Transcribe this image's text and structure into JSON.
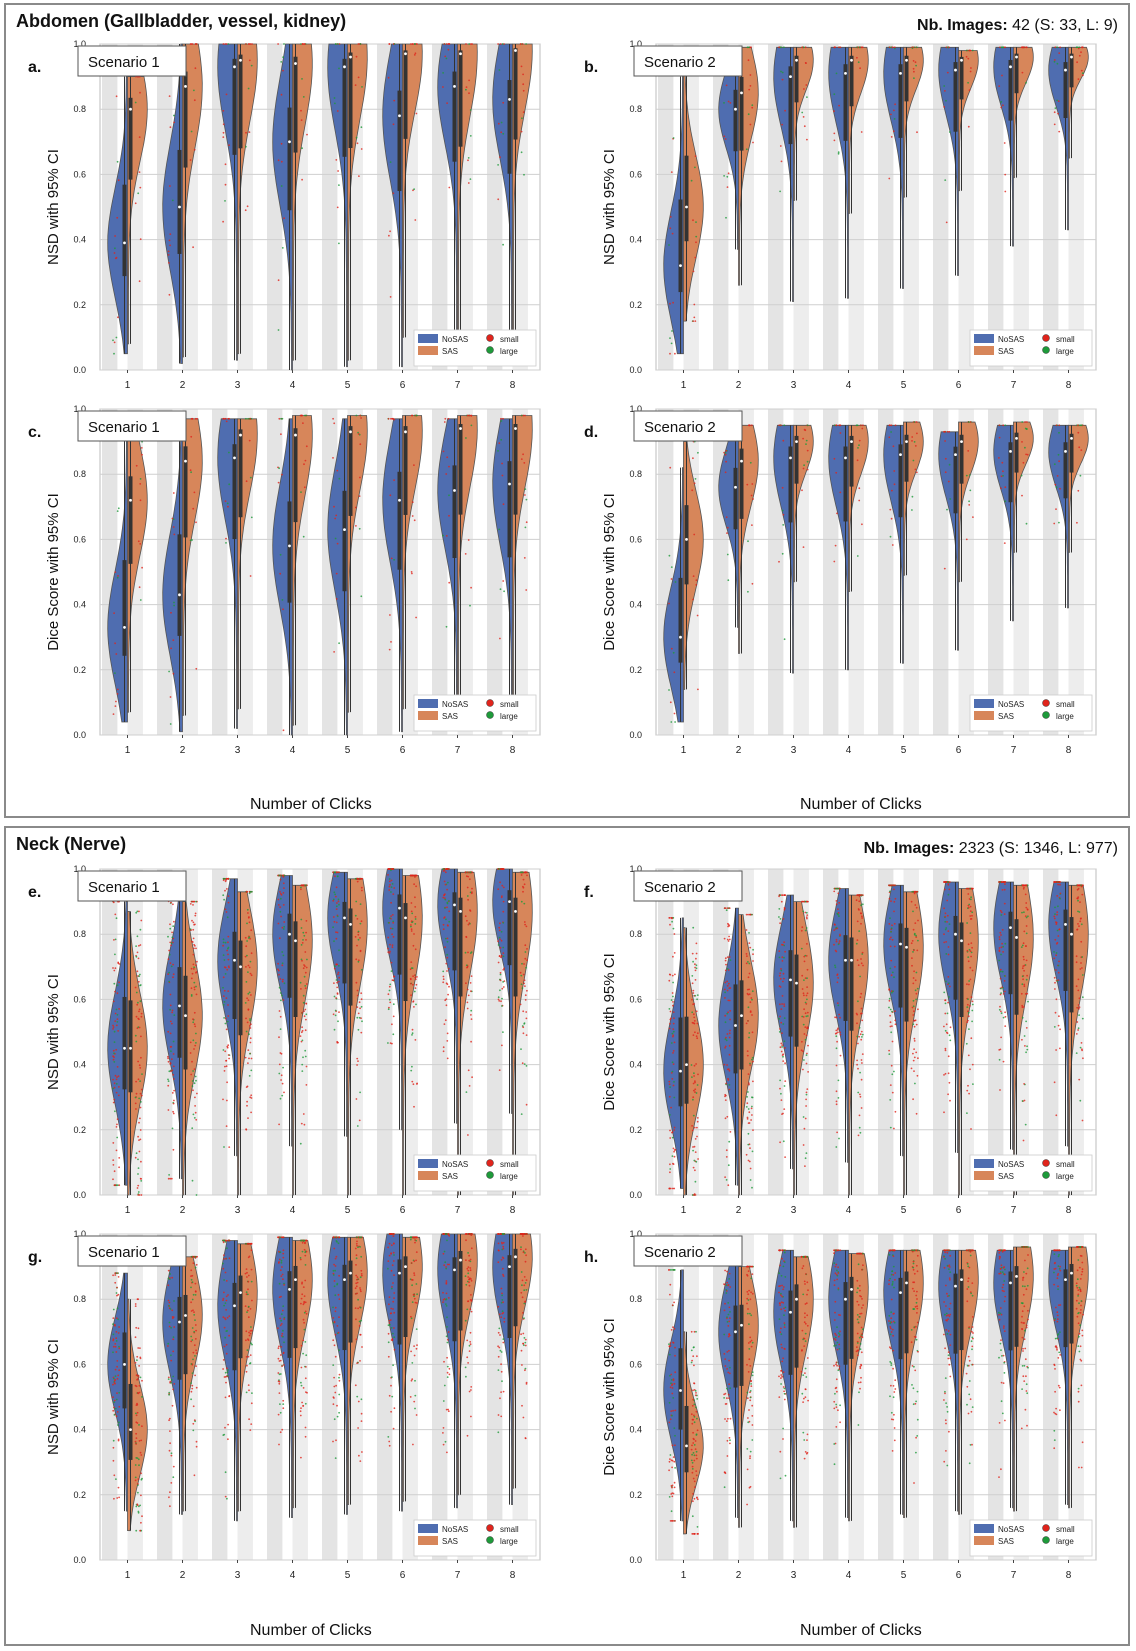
{
  "sections": [
    {
      "title": "Abdomen (Gallbladder, vessel, kidney)",
      "count_label": "Nb. Images:",
      "count_value": "42 (S: 33, L: 9)",
      "xlabel": "Number of Clicks"
    },
    {
      "title": "Neck (Nerve)",
      "count_label": "Nb. Images:",
      "count_value": "2323 (S: 1346, L: 977)",
      "xlabel": "Number of Clicks"
    }
  ],
  "legend": {
    "series": [
      {
        "name": "NoSAS",
        "color": "#4f6db0"
      },
      {
        "name": "SAS",
        "color": "#d7865a"
      }
    ],
    "sizes": [
      {
        "name": "small",
        "color": "#e0241c"
      },
      {
        "name": "large",
        "color": "#1e9a3a"
      }
    ]
  },
  "chart_data": [
    {
      "id": "a",
      "panel_label": "a.",
      "scenario": "Scenario 1",
      "type": "violin",
      "ylabel": "NSD with 95% CI",
      "xlabel": "",
      "ylim": [
        0,
        1
      ],
      "yticks": [
        "0.0",
        "0.2",
        "0.4",
        "0.6",
        "0.8",
        "1.0"
      ],
      "categories": [
        "1",
        "2",
        "3",
        "4",
        "5",
        "6",
        "7",
        "8"
      ],
      "series": [
        {
          "name": "NoSAS",
          "min": [
            0.05,
            0.02,
            0.03,
            0.0,
            0.01,
            0.01,
            0.1,
            0.07
          ],
          "max": [
            0.9,
            1.0,
            1.0,
            1.0,
            1.0,
            1.0,
            1.0,
            1.0
          ],
          "median": [
            0.39,
            0.5,
            0.93,
            0.7,
            0.93,
            0.78,
            0.87,
            0.83
          ]
        },
        {
          "name": "SAS",
          "min": [
            0.08,
            0.04,
            0.05,
            0.03,
            0.03,
            0.1,
            0.02,
            0.07
          ],
          "max": [
            0.9,
            1.0,
            1.0,
            1.0,
            1.0,
            1.0,
            1.0,
            1.0
          ],
          "median": [
            0.8,
            0.87,
            0.95,
            0.94,
            0.96,
            0.97,
            0.97,
            0.98
          ]
        }
      ],
      "dots": 14
    },
    {
      "id": "b",
      "panel_label": "b.",
      "scenario": "Scenario 2",
      "type": "violin",
      "ylabel": "NSD with 95% CI",
      "xlabel": "",
      "ylim": [
        0,
        1
      ],
      "yticks": [
        "0.0",
        "0.2",
        "0.4",
        "0.6",
        "0.8",
        "1.0"
      ],
      "categories": [
        "1",
        "2",
        "3",
        "4",
        "5",
        "6",
        "7",
        "8"
      ],
      "series": [
        {
          "name": "NoSAS",
          "min": [
            0.05,
            0.37,
            0.21,
            0.22,
            0.25,
            0.29,
            0.38,
            0.43
          ],
          "max": [
            0.9,
            0.97,
            0.99,
            0.99,
            0.99,
            0.99,
            0.99,
            0.99
          ],
          "median": [
            0.32,
            0.8,
            0.9,
            0.91,
            0.91,
            0.92,
            0.93,
            0.92
          ]
        },
        {
          "name": "SAS",
          "min": [
            0.15,
            0.26,
            0.52,
            0.48,
            0.53,
            0.55,
            0.59,
            0.65
          ],
          "max": [
            0.95,
            0.99,
            0.99,
            0.99,
            0.99,
            0.98,
            0.99,
            0.99
          ],
          "median": [
            0.5,
            0.85,
            0.95,
            0.95,
            0.95,
            0.95,
            0.96,
            0.96
          ]
        }
      ],
      "dots": 14
    },
    {
      "id": "c",
      "panel_label": "c.",
      "scenario": "Scenario 1",
      "type": "violin",
      "ylabel": "Dice Score with 95% CI",
      "xlabel": "Number of Clicks",
      "ylim": [
        0,
        1
      ],
      "yticks": [
        "0.0",
        "0.2",
        "0.4",
        "0.6",
        "0.8",
        "1.0"
      ],
      "categories": [
        "1",
        "2",
        "3",
        "4",
        "5",
        "6",
        "7",
        "8"
      ],
      "series": [
        {
          "name": "NoSAS",
          "min": [
            0.04,
            0.01,
            0.02,
            0.0,
            0.0,
            0.01,
            0.06,
            0.02
          ],
          "max": [
            0.92,
            0.96,
            0.97,
            0.97,
            0.97,
            0.97,
            0.97,
            0.97
          ],
          "median": [
            0.33,
            0.43,
            0.85,
            0.58,
            0.63,
            0.72,
            0.75,
            0.77
          ]
        },
        {
          "name": "SAS",
          "min": [
            0.07,
            0.06,
            0.08,
            0.03,
            0.07,
            0.08,
            0.06,
            0.06
          ],
          "max": [
            0.93,
            0.97,
            0.97,
            0.98,
            0.98,
            0.98,
            0.98,
            0.98
          ],
          "median": [
            0.72,
            0.84,
            0.92,
            0.92,
            0.93,
            0.93,
            0.94,
            0.94
          ]
        }
      ],
      "dots": 14
    },
    {
      "id": "d",
      "panel_label": "d.",
      "scenario": "Scenario 2",
      "type": "violin",
      "ylabel": "Dice Score with 95% CI",
      "xlabel": "Number of Clicks",
      "ylim": [
        0,
        1
      ],
      "yticks": [
        "0.0",
        "0.2",
        "0.4",
        "0.6",
        "0.8",
        "1.0"
      ],
      "categories": [
        "1",
        "2",
        "3",
        "4",
        "5",
        "6",
        "7",
        "8"
      ],
      "series": [
        {
          "name": "NoSAS",
          "min": [
            0.04,
            0.33,
            0.19,
            0.2,
            0.22,
            0.26,
            0.35,
            0.39
          ],
          "max": [
            0.82,
            0.93,
            0.95,
            0.95,
            0.95,
            0.93,
            0.95,
            0.95
          ],
          "median": [
            0.3,
            0.76,
            0.85,
            0.85,
            0.86,
            0.86,
            0.87,
            0.87
          ]
        },
        {
          "name": "SAS",
          "min": [
            0.14,
            0.25,
            0.47,
            0.44,
            0.49,
            0.47,
            0.56,
            0.56
          ],
          "max": [
            0.9,
            0.95,
            0.95,
            0.95,
            0.96,
            0.96,
            0.96,
            0.95
          ],
          "median": [
            0.6,
            0.84,
            0.9,
            0.9,
            0.9,
            0.9,
            0.91,
            0.91
          ]
        }
      ],
      "dots": 14
    },
    {
      "id": "e",
      "panel_label": "e.",
      "scenario": "Scenario 1",
      "type": "violin",
      "ylabel": "NSD with 95% CI",
      "xlabel": "",
      "ylim": [
        0,
        1
      ],
      "yticks": [
        "0.0",
        "0.2",
        "0.4",
        "0.6",
        "0.8",
        "1.0"
      ],
      "categories": [
        "1",
        "2",
        "3",
        "4",
        "5",
        "6",
        "7",
        "8"
      ],
      "series": [
        {
          "name": "NoSAS",
          "min": [
            0.03,
            0.05,
            0.12,
            0.15,
            0.18,
            0.2,
            0.22,
            0.25
          ],
          "max": [
            0.9,
            0.92,
            0.97,
            0.98,
            0.99,
            1.0,
            1.0,
            1.0
          ],
          "median": [
            0.45,
            0.58,
            0.72,
            0.8,
            0.85,
            0.88,
            0.89,
            0.9
          ]
        },
        {
          "name": "SAS",
          "min": [
            0.0,
            0.0,
            0.0,
            0.0,
            0.0,
            0.0,
            0.0,
            0.0
          ],
          "max": [
            0.87,
            0.9,
            0.93,
            0.95,
            0.97,
            0.98,
            0.99,
            0.99
          ],
          "median": [
            0.45,
            0.55,
            0.7,
            0.78,
            0.83,
            0.85,
            0.87,
            0.87
          ]
        }
      ],
      "dots": 80
    },
    {
      "id": "f",
      "panel_label": "f.",
      "scenario": "Scenario 2",
      "type": "violin",
      "ylabel": "Dice Score with 95% CI",
      "xlabel": "",
      "ylim": [
        0,
        1
      ],
      "yticks": [
        "0.0",
        "0.2",
        "0.4",
        "0.6",
        "0.8",
        "1.0"
      ],
      "categories": [
        "1",
        "2",
        "3",
        "4",
        "5",
        "6",
        "7",
        "8"
      ],
      "series": [
        {
          "name": "NoSAS",
          "min": [
            0.02,
            0.03,
            0.08,
            0.1,
            0.12,
            0.13,
            0.14,
            0.15
          ],
          "max": [
            0.85,
            0.88,
            0.92,
            0.94,
            0.95,
            0.96,
            0.96,
            0.96
          ],
          "median": [
            0.38,
            0.52,
            0.66,
            0.72,
            0.77,
            0.8,
            0.82,
            0.83
          ]
        },
        {
          "name": "SAS",
          "min": [
            0.0,
            0.0,
            0.0,
            0.0,
            0.0,
            0.0,
            0.0,
            0.0
          ],
          "max": [
            0.82,
            0.86,
            0.9,
            0.92,
            0.93,
            0.94,
            0.95,
            0.95
          ],
          "median": [
            0.4,
            0.55,
            0.65,
            0.72,
            0.76,
            0.78,
            0.79,
            0.8
          ]
        }
      ],
      "dots": 80
    },
    {
      "id": "g",
      "panel_label": "g.",
      "scenario": "Scenario 1",
      "type": "violin",
      "ylabel": "NSD with 95% CI",
      "xlabel": "Number of Clicks",
      "ylim": [
        0,
        1
      ],
      "yticks": [
        "0.0",
        "0.2",
        "0.4",
        "0.6",
        "0.8",
        "1.0"
      ],
      "categories": [
        "1",
        "2",
        "3",
        "4",
        "5",
        "6",
        "7",
        "8"
      ],
      "series": [
        {
          "name": "NoSAS",
          "min": [
            0.15,
            0.14,
            0.12,
            0.13,
            0.14,
            0.15,
            0.16,
            0.17
          ],
          "max": [
            0.88,
            0.95,
            0.98,
            0.99,
            0.99,
            1.0,
            1.0,
            1.0
          ],
          "median": [
            0.6,
            0.73,
            0.78,
            0.83,
            0.86,
            0.88,
            0.89,
            0.9
          ]
        },
        {
          "name": "SAS",
          "min": [
            0.09,
            0.15,
            0.15,
            0.16,
            0.17,
            0.18,
            0.2,
            0.22
          ],
          "max": [
            0.8,
            0.93,
            0.97,
            0.98,
            0.99,
            0.99,
            1.0,
            1.0
          ],
          "median": [
            0.4,
            0.75,
            0.82,
            0.86,
            0.88,
            0.9,
            0.92,
            0.93
          ]
        }
      ],
      "dots": 80
    },
    {
      "id": "h",
      "panel_label": "h.",
      "scenario": "Scenario 2",
      "type": "violin",
      "ylabel": "Dice Score with 95% CI",
      "xlabel": "Number of Clicks",
      "ylim": [
        0,
        1
      ],
      "yticks": [
        "0.0",
        "0.2",
        "0.4",
        "0.6",
        "0.8",
        "1.0"
      ],
      "categories": [
        "1",
        "2",
        "3",
        "4",
        "5",
        "6",
        "7",
        "8"
      ],
      "series": [
        {
          "name": "NoSAS",
          "min": [
            0.12,
            0.13,
            0.12,
            0.13,
            0.14,
            0.15,
            0.16,
            0.17
          ],
          "max": [
            0.89,
            0.93,
            0.95,
            0.95,
            0.95,
            0.95,
            0.95,
            0.95
          ],
          "median": [
            0.52,
            0.7,
            0.76,
            0.8,
            0.82,
            0.84,
            0.85,
            0.86
          ]
        },
        {
          "name": "SAS",
          "min": [
            0.08,
            0.1,
            0.1,
            0.12,
            0.13,
            0.14,
            0.15,
            0.16
          ],
          "max": [
            0.7,
            0.9,
            0.93,
            0.94,
            0.95,
            0.95,
            0.96,
            0.96
          ],
          "median": [
            0.35,
            0.72,
            0.8,
            0.83,
            0.85,
            0.86,
            0.87,
            0.88
          ]
        }
      ],
      "dots": 80
    }
  ]
}
